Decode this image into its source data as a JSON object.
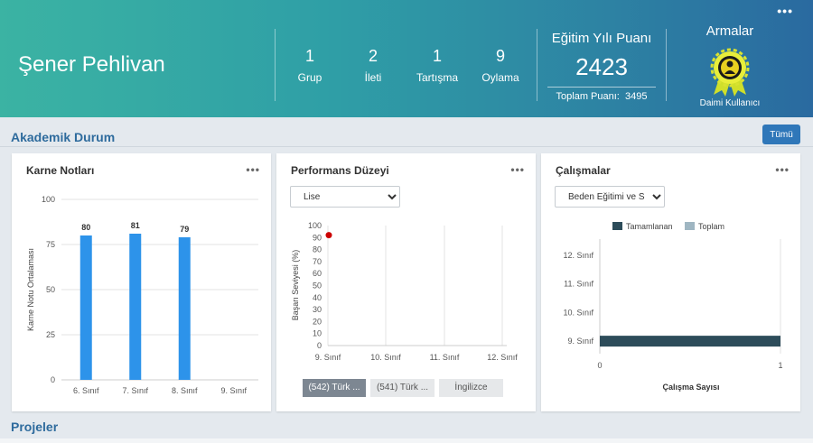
{
  "header": {
    "user_name": "Şener Pehlivan",
    "stats": [
      {
        "num": "1",
        "label": "Grup"
      },
      {
        "num": "2",
        "label": "İleti"
      },
      {
        "num": "1",
        "label": "Tartışma"
      },
      {
        "num": "9",
        "label": "Oylama"
      }
    ],
    "score_title": "Eğitim Yılı Puanı",
    "score_value": "2423",
    "total_label": "Toplam Puanı:",
    "total_value": "3495",
    "badges_title": "Armalar",
    "badge_caption": "Daimi Kullanıcı",
    "badge_icon": "badge-medal-icon",
    "more_icon": "more-dots-icon"
  },
  "academic": {
    "title": "Akademik Durum",
    "all_button": "Tümü"
  },
  "karne": {
    "title": "Karne Notları",
    "ylabel": "Karne Notu Ortalaması",
    "bar_color": "#2d93ea"
  },
  "performans": {
    "title": "Performans Düzeyi",
    "select_value": "Lise",
    "ylabel": "Başarı Seviyesi (%)",
    "buttons": [
      "(542) Türk ...",
      "(541) Türk ...",
      "İngilizce"
    ],
    "point_color": "#cc0000"
  },
  "calismalar": {
    "title": "Çalışmalar",
    "select_value": "Beden Eğitimi ve S",
    "legend": [
      "Tamamlanan",
      "Toplam"
    ],
    "xlabel": "Çalışma Sayısı",
    "colors": {
      "tamamlanan": "#2d4c5a",
      "toplam": "#9fb6c2"
    }
  },
  "projects": {
    "title": "Projeler"
  },
  "chart_data": [
    {
      "type": "bar",
      "title": "Karne Notları",
      "categories": [
        "6. Sınıf",
        "7. Sınıf",
        "8. Sınıf",
        "9. Sınıf"
      ],
      "values": [
        80,
        81,
        79,
        null
      ],
      "ylabel": "Karne Notu Ortalaması",
      "ylim": [
        0,
        100
      ],
      "yticks": [
        0,
        25,
        50,
        75,
        100
      ]
    },
    {
      "type": "scatter",
      "title": "Performans Düzeyi",
      "categories": [
        "9. Sınıf",
        "10. Sınıf",
        "11. Sınıf",
        "12. Sınıf"
      ],
      "points": [
        {
          "x": "9. Sınıf",
          "y": 92
        }
      ],
      "ylabel": "Başarı Seviyesi (%)",
      "ylim": [
        0,
        100
      ],
      "yticks": [
        0,
        10,
        20,
        30,
        40,
        50,
        60,
        70,
        80,
        90,
        100
      ]
    },
    {
      "type": "bar",
      "title": "Çalışmalar",
      "orientation": "horizontal",
      "categories": [
        "12. Sınıf",
        "11. Sınıf",
        "10. Sınıf",
        "9. Sınıf"
      ],
      "series": [
        {
          "name": "Tamamlanan",
          "values": [
            0,
            0,
            0,
            1
          ]
        },
        {
          "name": "Toplam",
          "values": [
            0,
            0,
            0,
            1
          ]
        }
      ],
      "xlabel": "Çalışma Sayısı",
      "xlim": [
        0,
        1
      ],
      "xticks": [
        0,
        1
      ]
    }
  ]
}
